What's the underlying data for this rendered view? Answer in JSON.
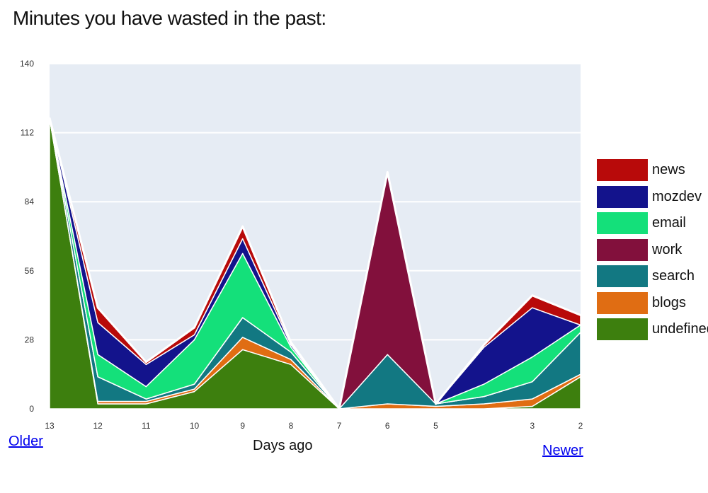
{
  "page": {
    "title": "Minutes you have wasted in the past:",
    "older_link": "Older",
    "newer_link": "Newer"
  },
  "chart_data": {
    "type": "area",
    "stacked": true,
    "title": "Minutes you have wasted in the past:",
    "xlabel": "Days ago",
    "ylabel": "",
    "ylim": [
      0,
      140
    ],
    "yticks": [
      0,
      28,
      56,
      84,
      112,
      140
    ],
    "x": [
      13,
      12,
      11,
      10,
      9,
      8,
      7,
      6,
      5,
      4,
      3,
      2
    ],
    "x_tick_labels": [
      "13",
      "12",
      "11",
      "10",
      "9",
      "8",
      "7",
      "6",
      "5",
      "",
      "3",
      "2"
    ],
    "grid": true,
    "legend_position": "right",
    "series": [
      {
        "name": "undefined",
        "color": "#3d7f0e",
        "values": [
          118,
          2,
          2,
          7,
          24,
          18,
          0,
          0,
          0,
          0,
          1,
          13
        ]
      },
      {
        "name": "blogs",
        "color": "#e06d13",
        "values": [
          0,
          1,
          1,
          1,
          5,
          2,
          0,
          2,
          1,
          2,
          3,
          1
        ]
      },
      {
        "name": "search",
        "color": "#127882",
        "values": [
          0,
          10,
          1,
          2,
          8,
          3,
          0,
          20,
          1,
          3,
          7,
          17
        ]
      },
      {
        "name": "work",
        "color": "#82103c",
        "values": [
          0,
          0,
          0,
          0,
          0,
          0,
          0,
          74,
          0,
          0,
          0,
          0
        ]
      },
      {
        "name": "email",
        "color": "#14e07a",
        "values": [
          0,
          9,
          5,
          18,
          26,
          2,
          0,
          0,
          0,
          5,
          10,
          3
        ]
      },
      {
        "name": "mozdev",
        "color": "#13138c",
        "values": [
          0,
          13,
          9,
          2,
          6,
          1,
          0,
          0,
          0,
          15,
          20,
          0
        ]
      },
      {
        "name": "news",
        "color": "#b80a0a",
        "values": [
          0,
          6,
          1,
          3,
          5,
          1,
          0,
          0,
          0,
          1,
          5,
          4
        ]
      }
    ],
    "legend_order": [
      "news",
      "mozdev",
      "email",
      "work",
      "search",
      "blogs",
      "undefined"
    ],
    "legend_labels": [
      "news",
      "mozdev",
      "email",
      "work",
      "search",
      "blogs",
      "undefined"
    ],
    "plot_background": "#e6ecf4",
    "grid_color": "#ffffff"
  }
}
